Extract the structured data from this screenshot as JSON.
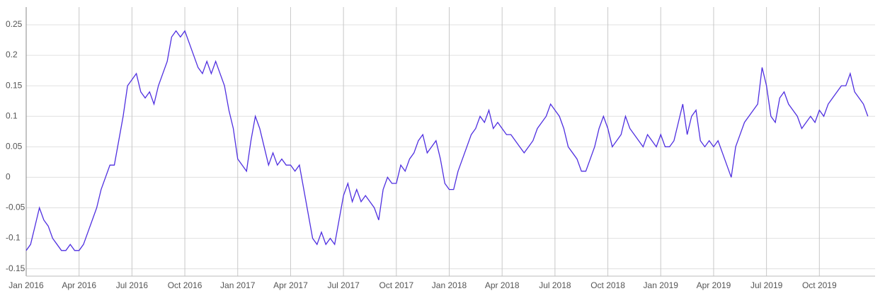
{
  "chart_data": {
    "type": "line",
    "color": "#4f2fe0",
    "categories": [
      "Jan 2016",
      null,
      null,
      null,
      null,
      null,
      null,
      null,
      null,
      null,
      null,
      null,
      "Apr 2016",
      null,
      null,
      null,
      null,
      null,
      null,
      null,
      null,
      null,
      null,
      null,
      "Jul 2016",
      null,
      null,
      null,
      null,
      null,
      null,
      null,
      null,
      null,
      null,
      null,
      "Oct 2016",
      null,
      null,
      null,
      null,
      null,
      null,
      null,
      null,
      null,
      null,
      null,
      "Jan 2017",
      null,
      null,
      null,
      null,
      null,
      null,
      null,
      null,
      null,
      null,
      null,
      "Apr 2017",
      null,
      null,
      null,
      null,
      null,
      null,
      null,
      null,
      null,
      null,
      null,
      "Jul 2017",
      null,
      null,
      null,
      null,
      null,
      null,
      null,
      null,
      null,
      null,
      null,
      "Oct 2017",
      null,
      null,
      null,
      null,
      null,
      null,
      null,
      null,
      null,
      null,
      null,
      "Jan 2018",
      null,
      null,
      null,
      null,
      null,
      null,
      null,
      null,
      null,
      null,
      null,
      "Apr 2018",
      null,
      null,
      null,
      null,
      null,
      null,
      null,
      null,
      null,
      null,
      null,
      "Jul 2018",
      null,
      null,
      null,
      null,
      null,
      null,
      null,
      null,
      null,
      null,
      null,
      "Oct 2018",
      null,
      null,
      null,
      null,
      null,
      null,
      null,
      null,
      null,
      null,
      null,
      "Jan 2019",
      null,
      null,
      null,
      null,
      null,
      null,
      null,
      null,
      null,
      null,
      null,
      "Apr 2019",
      null,
      null,
      null,
      null,
      null,
      null,
      null,
      null,
      null,
      null,
      null,
      "Jul 2019",
      null,
      null,
      null,
      null,
      null,
      null,
      null,
      null,
      null,
      null,
      null,
      "Oct 2019",
      null,
      null,
      null,
      null,
      null,
      null,
      null,
      null,
      null,
      null,
      null
    ],
    "values": [
      -0.12,
      -0.11,
      -0.08,
      -0.05,
      -0.07,
      -0.08,
      -0.1,
      -0.11,
      -0.12,
      -0.12,
      -0.11,
      -0.12,
      -0.12,
      -0.11,
      -0.09,
      -0.07,
      -0.05,
      -0.02,
      0.0,
      0.02,
      0.02,
      0.06,
      0.1,
      0.15,
      0.16,
      0.17,
      0.14,
      0.13,
      0.14,
      0.12,
      0.15,
      0.17,
      0.19,
      0.23,
      0.24,
      0.23,
      0.24,
      0.22,
      0.2,
      0.18,
      0.17,
      0.19,
      0.17,
      0.19,
      0.17,
      0.15,
      0.11,
      0.08,
      0.03,
      0.02,
      0.01,
      0.06,
      0.1,
      0.08,
      0.05,
      0.02,
      0.04,
      0.02,
      0.03,
      0.02,
      0.02,
      0.01,
      0.02,
      -0.02,
      -0.06,
      -0.1,
      -0.11,
      -0.09,
      -0.11,
      -0.1,
      -0.11,
      -0.07,
      -0.03,
      -0.01,
      -0.04,
      -0.02,
      -0.04,
      -0.03,
      -0.04,
      -0.05,
      -0.07,
      -0.02,
      0.0,
      -0.01,
      -0.01,
      0.02,
      0.01,
      0.03,
      0.04,
      0.06,
      0.07,
      0.04,
      0.05,
      0.06,
      0.03,
      -0.01,
      -0.02,
      -0.02,
      0.01,
      0.03,
      0.05,
      0.07,
      0.08,
      0.1,
      0.09,
      0.11,
      0.08,
      0.09,
      0.08,
      0.07,
      0.07,
      0.06,
      0.05,
      0.04,
      0.05,
      0.06,
      0.08,
      0.09,
      0.1,
      0.12,
      0.11,
      0.1,
      0.08,
      0.05,
      0.04,
      0.03,
      0.01,
      0.01,
      0.03,
      0.05,
      0.08,
      0.1,
      0.08,
      0.05,
      0.06,
      0.07,
      0.1,
      0.08,
      0.07,
      0.06,
      0.05,
      0.07,
      0.06,
      0.05,
      0.07,
      0.05,
      0.05,
      0.06,
      0.09,
      0.12,
      0.07,
      0.1,
      0.11,
      0.06,
      0.05,
      0.06,
      0.05,
      0.06,
      0.04,
      0.02,
      0.0,
      0.05,
      0.07,
      0.09,
      0.1,
      0.11,
      0.12,
      0.18,
      0.15,
      0.1,
      0.09,
      0.13,
      0.14,
      0.12,
      0.11,
      0.1,
      0.08,
      0.09,
      0.1,
      0.09,
      0.11,
      0.1,
      0.12,
      0.13,
      0.14,
      0.15,
      0.15,
      0.17,
      0.14,
      0.13,
      0.12,
      0.1
    ],
    "ylim": [
      -0.162,
      0.279
    ],
    "yticks": [
      -0.15,
      -0.1,
      -0.05,
      0,
      0.05,
      0.1,
      0.15,
      0.2,
      0.25
    ],
    "grid": true
  }
}
